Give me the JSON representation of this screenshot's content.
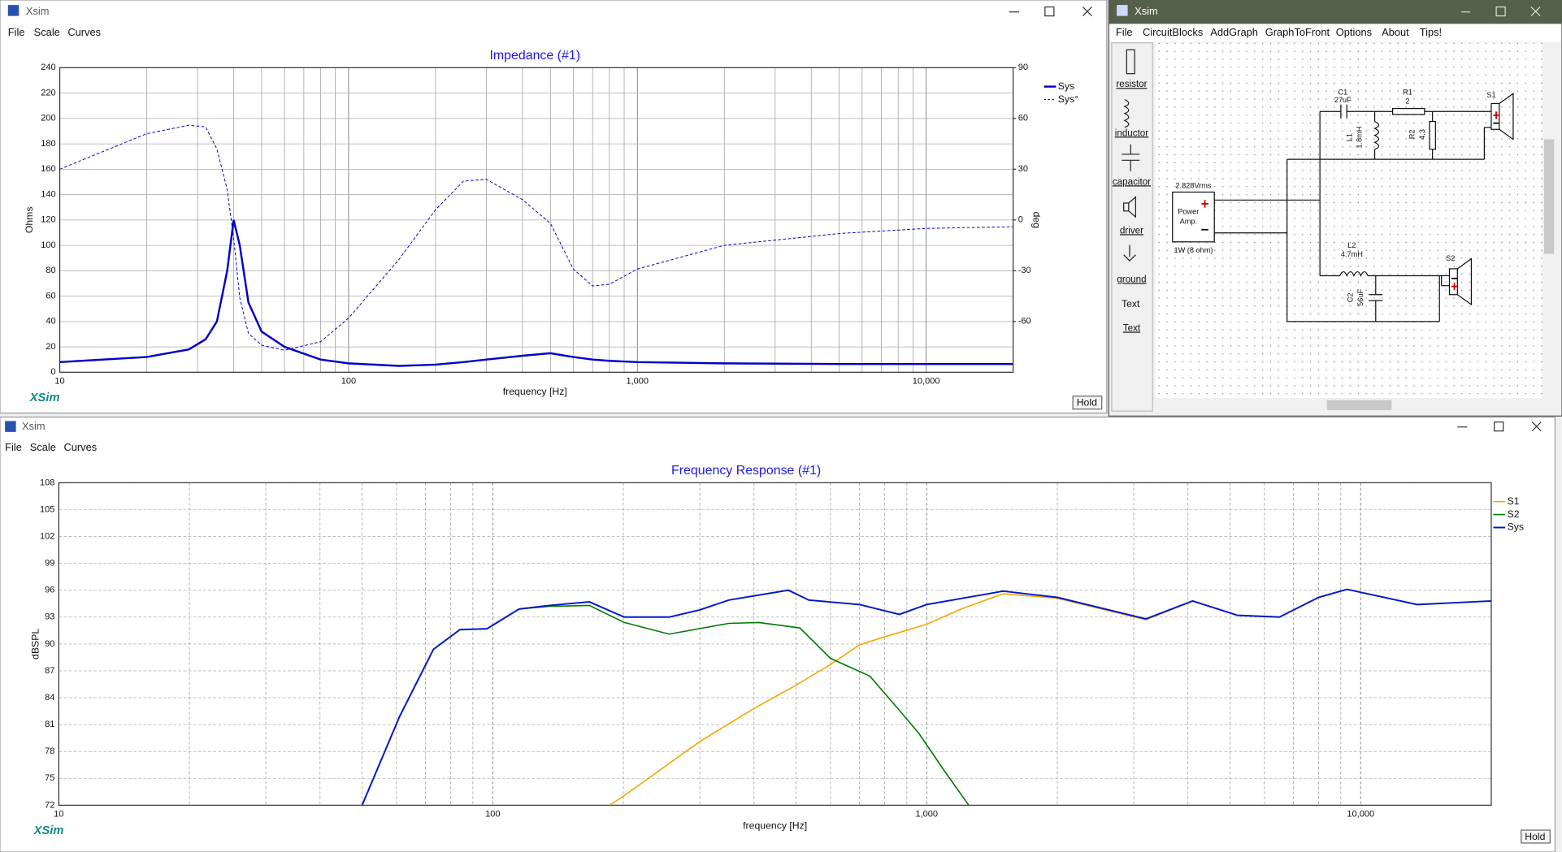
{
  "windows": [
    {
      "title": "Xsim",
      "menu": [
        "File",
        "Scale",
        "Curves"
      ],
      "brand": "XSim",
      "button": "Hold"
    },
    {
      "title": "Xsim",
      "menu": [
        "File",
        "CircuitBlocks",
        "AddGraph",
        "GraphToFront",
        "Options",
        "About",
        "Tips!"
      ],
      "toolbox": [
        "resistor",
        "inductor",
        "capacitor",
        "driver",
        "ground",
        "Text",
        "Text"
      ]
    },
    {
      "title": "Xsim",
      "menu": [
        "File",
        "Scale",
        "Curves"
      ],
      "brand": "XSim",
      "button": "Hold"
    }
  ],
  "circuit": {
    "source": {
      "voltage": "2.828Vrms",
      "line1": "Power",
      "line2": "Amp.",
      "power": "1W (8 ohm)"
    },
    "c1": {
      "name": "C1",
      "value": "27uF"
    },
    "r1": {
      "name": "R1",
      "value": "2"
    },
    "l1": {
      "name": "L1",
      "value": "1.8mH"
    },
    "r2": {
      "name": "R2",
      "value": "4.3"
    },
    "s1": {
      "name": "S1"
    },
    "l2": {
      "name": "L2",
      "value": "4.7mH"
    },
    "c2": {
      "name": "C2",
      "value": "56uF"
    },
    "s2": {
      "name": "S2"
    }
  },
  "chart_data": [
    {
      "type": "line",
      "title": "Impedance (#1)",
      "xlabel": "frequency [Hz]",
      "ylabel": "Ohms",
      "y2label": "deg",
      "xscale": "log",
      "xlim": [
        10,
        20000
      ],
      "xticks": [
        10,
        100,
        {
          "value": 1000,
          "label": "1,000"
        },
        {
          "value": 10000,
          "label": "10,000"
        }
      ],
      "ylim": [
        0,
        240
      ],
      "yticks": [
        0,
        20,
        40,
        60,
        80,
        100,
        120,
        140,
        160,
        180,
        200,
        220,
        240
      ],
      "y2lim": [
        -90,
        90
      ],
      "y2ticks": [
        -60,
        -30,
        0,
        30,
        60,
        90
      ],
      "grid": true,
      "minor_grid": true,
      "grid_style": "solid",
      "legend": "right",
      "x": [
        10,
        20,
        28,
        32,
        35,
        38,
        40,
        42,
        45,
        50,
        60,
        80,
        100,
        150,
        200,
        250,
        300,
        400,
        500,
        600,
        700,
        800,
        1000,
        2000,
        5000,
        10000,
        20000
      ],
      "series": [
        {
          "name": "Sys",
          "color": "#0000c8",
          "line_width": 2,
          "values": [
            8,
            12,
            18,
            26,
            40,
            80,
            120,
            100,
            55,
            32,
            20,
            10,
            7,
            5,
            6,
            8,
            10,
            13,
            15,
            12,
            10,
            9,
            8,
            7,
            6.5,
            6.5,
            6.5
          ]
        },
        {
          "name": "Sys°",
          "color": "#0000c8",
          "line_width": 0.8,
          "line_style": "dashed",
          "axis": "y2",
          "values": [
            30,
            51,
            56,
            55,
            42,
            18,
            -11,
            -46,
            -67,
            -74,
            -77,
            -72,
            -58,
            -23,
            6,
            23,
            24,
            12,
            -2,
            -29,
            -39,
            -38,
            -29,
            -15,
            -8,
            -5,
            -4
          ]
        }
      ]
    },
    {
      "type": "line",
      "title": "Frequency Response (#1)",
      "xlabel": "frequency [Hz]",
      "ylabel": "dBSPL",
      "xscale": "log",
      "xlim": [
        10,
        20000
      ],
      "xticks": [
        10,
        100,
        {
          "value": 1000,
          "label": "1,000"
        },
        {
          "value": 10000,
          "label": "10,000"
        }
      ],
      "ylim": [
        72,
        108
      ],
      "yticks": [
        72,
        75,
        78,
        81,
        84,
        87,
        90,
        93,
        96,
        99,
        102,
        105,
        108
      ],
      "grid": true,
      "minor_grid": true,
      "grid_style": "dashed",
      "legend": "right",
      "series": [
        {
          "name": "S1",
          "color": "#f0a800",
          "line_width": 1.3,
          "x": [
            186,
            200,
            300,
            400,
            500,
            600,
            700,
            800,
            1000,
            1200,
            1500,
            2000,
            3200,
            4100,
            5200,
            6500,
            8000,
            9300,
            13500,
            20000
          ],
          "values": [
            72,
            73,
            79.1,
            82.8,
            85.4,
            87.7,
            89.9,
            90.8,
            92.2,
            93.9,
            95.6,
            95.1,
            92.7,
            94.8,
            93.2,
            93,
            95.2,
            96.1,
            94.4,
            94.8
          ]
        },
        {
          "name": "S2",
          "color": "#007a00",
          "line_width": 1.3,
          "x": [
            50,
            61,
            73,
            84,
            97,
            115,
            135,
            167,
            201,
            255,
            350,
            410,
            510,
            600,
            740,
            865,
            960,
            1100,
            1250
          ],
          "values": [
            72,
            81.9,
            89.4,
            91.6,
            91.7,
            93.9,
            94.2,
            94.3,
            92.4,
            91.1,
            92.3,
            92.4,
            91.8,
            88.4,
            86.4,
            82.6,
            80,
            75.8,
            72
          ]
        },
        {
          "name": "Sys",
          "color": "#0018c8",
          "line_width": 1.6,
          "x": [
            50,
            61,
            73,
            84,
            97,
            115,
            135,
            167,
            201,
            255,
            300,
            350,
            480,
            535,
            700,
            865,
            1000,
            1500,
            2000,
            3200,
            4100,
            5200,
            6500,
            8000,
            9300,
            13500,
            20000
          ],
          "values": [
            72,
            81.9,
            89.4,
            91.6,
            91.7,
            93.9,
            94.3,
            94.7,
            93,
            93,
            93.8,
            94.9,
            96,
            94.9,
            94.4,
            93.3,
            94.4,
            95.9,
            95.2,
            92.8,
            94.8,
            93.2,
            93,
            95.2,
            96.1,
            94.4,
            94.8
          ]
        }
      ]
    }
  ]
}
